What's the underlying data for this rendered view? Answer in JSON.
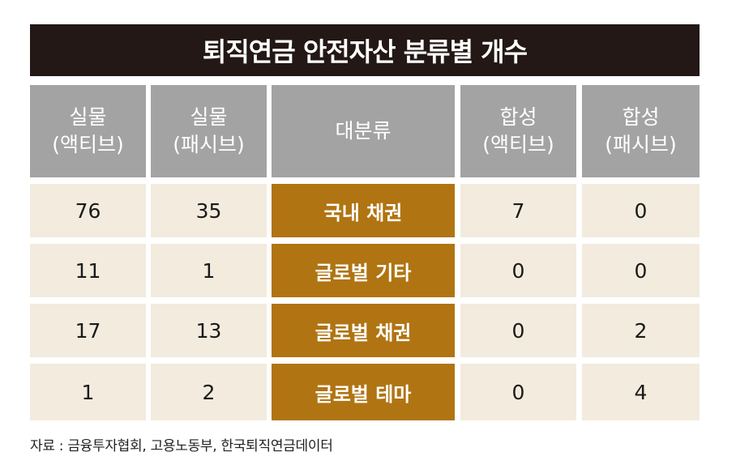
{
  "title": "퇴직연금 안전자산 분류별 개수",
  "headers": [
    {
      "line1": "실물",
      "line2": "(액티브)"
    },
    {
      "line1": "실물",
      "line2": "(패시브)"
    },
    {
      "line1": "대분류",
      "line2": ""
    },
    {
      "line1": "합성",
      "line2": "(액티브)"
    },
    {
      "line1": "합성",
      "line2": "(패시브)"
    }
  ],
  "rows": [
    {
      "physical_active": "76",
      "physical_passive": "35",
      "category": "국내 채권",
      "synthetic_active": "7",
      "synthetic_passive": "0"
    },
    {
      "physical_active": "11",
      "physical_passive": "1",
      "category": "글로벌 기타",
      "synthetic_active": "0",
      "synthetic_passive": "0"
    },
    {
      "physical_active": "17",
      "physical_passive": "13",
      "category": "글로벌 채권",
      "synthetic_active": "0",
      "synthetic_passive": "2"
    },
    {
      "physical_active": "1",
      "physical_passive": "2",
      "category": "글로벌 테마",
      "synthetic_active": "0",
      "synthetic_passive": "4"
    }
  ],
  "source": "자료 : 금융투자협회, 고용노동부, 한국퇴직연금데이터",
  "colors": {
    "title_bg": "#231815",
    "header_bg": "#a3a3a3",
    "cell_bg": "#f2ebde",
    "category_bg": "#b07412"
  },
  "chart_data": {
    "type": "table",
    "title": "퇴직연금 안전자산 분류별 개수",
    "columns": [
      "실물 (액티브)",
      "실물 (패시브)",
      "대분류",
      "합성 (액티브)",
      "합성 (패시브)"
    ],
    "rows": [
      [
        76,
        35,
        "국내 채권",
        7,
        0
      ],
      [
        11,
        1,
        "글로벌 기타",
        0,
        0
      ],
      [
        17,
        13,
        "글로벌 채권",
        0,
        2
      ],
      [
        1,
        2,
        "글로벌 테마",
        0,
        4
      ]
    ]
  }
}
